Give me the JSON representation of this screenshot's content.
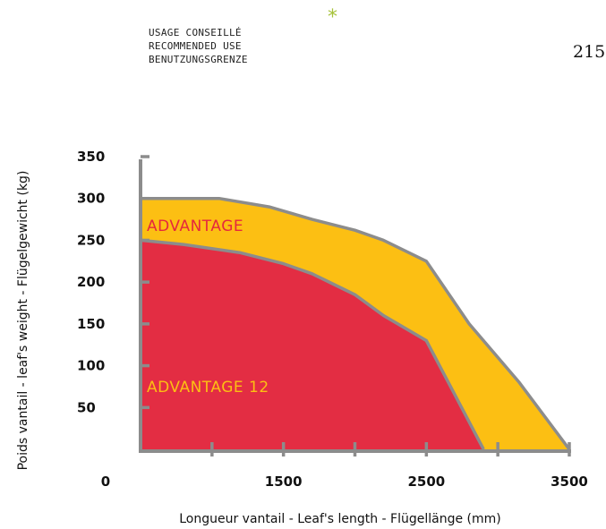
{
  "header": {
    "lines": [
      "USAGE CONSEILLÉ",
      "RECOMMENDED USE",
      "BENUTZUNGSGRENZE"
    ],
    "mark": "*",
    "page_number": "215"
  },
  "colors": {
    "advantage_fill": "#FCBF13",
    "advantage_label": "#E5283D",
    "advantage12_fill": "#E32D43",
    "advantage12_label": "#FCBF13",
    "outline": "#8C8C8C",
    "axis": "#8C8C8C",
    "mark": "#A6C23A"
  },
  "chart_data": {
    "type": "area",
    "title": "",
    "xlabel": "Longueur vantail - Leaf's length - Flügellänge (mm)",
    "ylabel": "Poids vantail - leaf's weight - Flügelgewicht (kg)",
    "xlim": [
      500,
      3500
    ],
    "ylim": [
      0,
      350
    ],
    "x_tick_values": [
      1000,
      1500,
      2000,
      2500,
      3000,
      3500
    ],
    "x_tick_labels": [
      "0",
      "1500",
      "2500",
      "3500"
    ],
    "x_tick_label_positions": [
      500,
      1500,
      2500,
      3500
    ],
    "y_ticks": [
      350,
      300,
      250,
      200,
      150,
      100,
      50
    ],
    "series": [
      {
        "name": "ADVANTAGE",
        "x": [
          500,
          1050,
          1400,
          1700,
          2000,
          2200,
          2500,
          2800,
          3150,
          3500
        ],
        "y": [
          300,
          300,
          290,
          275,
          262,
          250,
          225,
          150,
          80,
          0
        ]
      },
      {
        "name": "ADVANTAGE 12",
        "x": [
          500,
          800,
          1200,
          1500,
          1700,
          2000,
          2200,
          2500,
          2900
        ],
        "y": [
          250,
          245,
          235,
          222,
          210,
          185,
          160,
          130,
          0
        ]
      }
    ]
  }
}
